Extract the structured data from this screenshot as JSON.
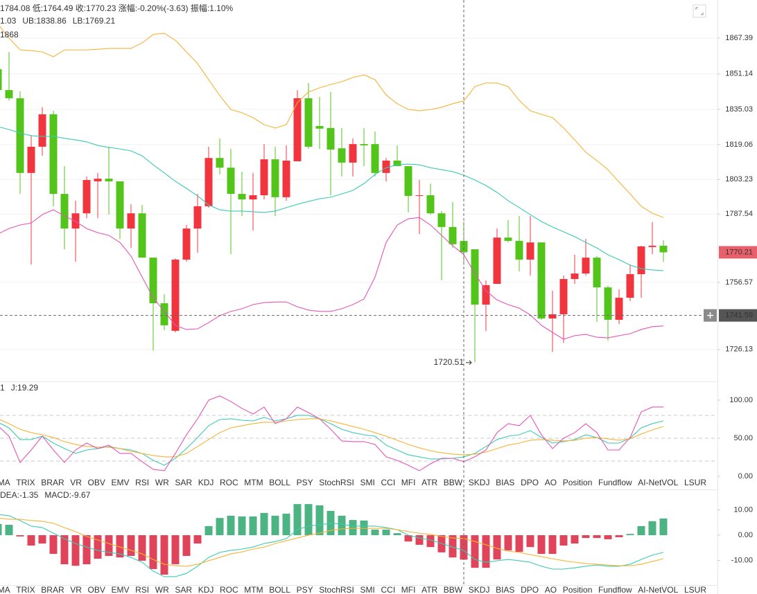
{
  "indicator_tabs": [
    "DMA",
    "TRIX",
    "BRAR",
    "VR",
    "OBV",
    "EMV",
    "RSI",
    "WR",
    "SAR",
    "KDJ",
    "ROC",
    "MTM",
    "BOLL",
    "PSY",
    "StochRSI",
    "SMI",
    "CCI",
    "MFI",
    "ATR",
    "BBW",
    "SKDJ",
    "BIAS",
    "DPO",
    "AO",
    "Position",
    "Fundflow",
    "AI-NetVOL",
    "LSUR"
  ],
  "tab_rows": [
    {
      "active": 9,
      "disabled": [
        26
      ]
    },
    {
      "disabled": [
        9,
        26
      ]
    }
  ],
  "chart_data": [
    {
      "type": "candlestick",
      "info": "1784.08 低:1764.49 收:1770.23 涨幅:-0.20%(-3.63) 振幅:1.10%",
      "info_color": "#e8434e",
      "corner_label": "1868",
      "legend": [
        {
          "label": "1.03",
          "color": "#2ab7a2"
        },
        {
          "label": "UB:1838.86",
          "color": "#f0a020"
        },
        {
          "label": "LB:1769.21",
          "color": "#e040b0"
        }
      ],
      "open": [
        1853.3,
        1843.8,
        1840.1,
        1806.2,
        1818.1,
        1832.8,
        1796.7,
        1781.0,
        1787.9,
        1802.4,
        1803.6,
        1802.4,
        1781.0,
        1787.9,
        1767.8,
        1747.1,
        1734.6,
        1766.9,
        1781.0,
        1791.1,
        1813.0,
        1808.6,
        1796.7,
        1794.2,
        1796.1,
        1812.4,
        1795.2,
        1811.5,
        1840.1,
        1827.5,
        1826.6,
        1817.4,
        1810.9,
        1819.3,
        1819.3,
        1806.2,
        1811.8,
        1809.3,
        1795.8,
        1796.1,
        1787.9,
        1781.7,
        1775.4,
        1771.6,
        1746.5,
        1755.9,
        1776.9,
        1775.4,
        1766.9,
        1774.7,
        1740.2,
        1742.1,
        1758.1,
        1760.6,
        1767.8,
        1754.3,
        1739.6,
        1749.6,
        1760.3,
        1772.6,
        1773.2
      ],
      "high": [
        1859.5,
        1861.1,
        1843.2,
        1823.4,
        1836.0,
        1834.4,
        1809.3,
        1793.6,
        1804.6,
        1806.2,
        1818.1,
        1802.4,
        1792.0,
        1791.7,
        1767.8,
        1751.2,
        1767.5,
        1782.6,
        1796.7,
        1818.1,
        1821.9,
        1817.1,
        1806.8,
        1806.2,
        1819.3,
        1818.1,
        1818.7,
        1843.8,
        1847.0,
        1840.7,
        1842.9,
        1826.6,
        1821.9,
        1826.6,
        1825.0,
        1813.0,
        1818.7,
        1809.3,
        1803.0,
        1801.4,
        1788.9,
        1793.0,
        1784.08,
        1771.6,
        1757.5,
        1781.0,
        1784.8,
        1786.7,
        1786.7,
        1774.7,
        1752.8,
        1759.7,
        1769.1,
        1776.3,
        1768.5,
        1755.0,
        1753.4,
        1764.7,
        1773.2,
        1783.9,
        1775.7
      ],
      "low": [
        1840.7,
        1839.1,
        1796.7,
        1764.7,
        1814.0,
        1791.1,
        1771.6,
        1765.9,
        1785.7,
        1785.7,
        1787.3,
        1776.3,
        1772.2,
        1767.8,
        1725.7,
        1734.9,
        1733.9,
        1765.9,
        1770.0,
        1790.4,
        1805.5,
        1769.4,
        1786.7,
        1780.1,
        1794.2,
        1786.7,
        1793.6,
        1811.5,
        1817.1,
        1817.1,
        1796.1,
        1804.6,
        1804.6,
        1809.3,
        1804.6,
        1802.4,
        1809.3,
        1788.3,
        1778.5,
        1787.3,
        1757.5,
        1772.2,
        1764.49,
        1720.51,
        1734.6,
        1755.9,
        1774.7,
        1761.6,
        1759.7,
        1739.6,
        1725.1,
        1729.2,
        1755.9,
        1759.7,
        1738.6,
        1730.2,
        1737.7,
        1748.1,
        1749.6,
        1769.4,
        1765.9
      ],
      "close": [
        1843.8,
        1840.1,
        1806.2,
        1818.1,
        1832.8,
        1796.7,
        1781.0,
        1787.9,
        1803.0,
        1803.6,
        1802.4,
        1781.0,
        1787.9,
        1767.8,
        1747.1,
        1737.1,
        1766.9,
        1781.0,
        1791.1,
        1813.0,
        1808.6,
        1796.7,
        1794.2,
        1796.1,
        1812.4,
        1795.2,
        1811.8,
        1840.1,
        1818.1,
        1826.3,
        1816.8,
        1810.9,
        1819.3,
        1818.7,
        1806.2,
        1811.8,
        1809.3,
        1795.8,
        1796.1,
        1787.9,
        1781.7,
        1773.86,
        1770.23,
        1746.5,
        1755.3,
        1776.9,
        1775.4,
        1766.9,
        1774.7,
        1740.2,
        1742.1,
        1758.1,
        1760.6,
        1767.8,
        1754.3,
        1739.6,
        1749.6,
        1760.3,
        1772.9,
        1773.2,
        1770.21
      ],
      "up_color": "#f0353f",
      "down_color": "#52c41a",
      "series": [
        {
          "color": "#f5b335",
          "values": [
            1873.7,
            1867.4,
            1862.0,
            1861.7,
            1861.1,
            1858.9,
            1862.0,
            1862.0,
            1862.0,
            1862.3,
            1862.7,
            1862.7,
            1862.7,
            1865.2,
            1869.0,
            1869.6,
            1866.4,
            1861.1,
            1855.8,
            1848.5,
            1841.3,
            1835.0,
            1833.5,
            1831.3,
            1828.1,
            1826.6,
            1828.1,
            1838.2,
            1842.9,
            1844.8,
            1846.3,
            1847.6,
            1849.5,
            1850.7,
            1848.5,
            1841.6,
            1837.6,
            1835.0,
            1834.4,
            1835.0,
            1836.0,
            1837.6,
            1838.86,
            1845.4,
            1847.0,
            1847.0,
            1845.4,
            1839.1,
            1834.4,
            1832.8,
            1831.3,
            1826.6,
            1821.2,
            1815.6,
            1811.8,
            1807.7,
            1802.1,
            1796.7,
            1791.1,
            1787.9,
            1786.0
          ]
        },
        {
          "color": "#3cc9b4",
          "values": [
            1827.2,
            1825.9,
            1824.3,
            1823.1,
            1822.8,
            1822.8,
            1821.9,
            1821.2,
            1820.3,
            1818.7,
            1817.8,
            1817.1,
            1816.2,
            1814.0,
            1809.9,
            1806.2,
            1802.4,
            1799.2,
            1795.8,
            1791.7,
            1789.5,
            1788.9,
            1788.9,
            1788.6,
            1788.3,
            1788.9,
            1790.5,
            1792.0,
            1793.3,
            1794.5,
            1795.2,
            1796.7,
            1798.3,
            1801.4,
            1805.5,
            1808.6,
            1809.9,
            1810.2,
            1809.9,
            1808.6,
            1807.7,
            1806.8,
            1805.2,
            1803.0,
            1800.5,
            1797.4,
            1793.6,
            1790.5,
            1787.3,
            1784.2,
            1781.7,
            1779.5,
            1777.3,
            1774.7,
            1772.2,
            1769.1,
            1766.9,
            1764.4,
            1762.8,
            1762.2,
            1761.9
          ]
        },
        {
          "color": "#e455b8",
          "values": [
            1778.5,
            1781.0,
            1782.6,
            1783.5,
            1787.3,
            1789.5,
            1786.7,
            1784.2,
            1781.0,
            1779.1,
            1777.9,
            1774.7,
            1768.5,
            1759.0,
            1749.6,
            1743.4,
            1737.1,
            1735.2,
            1735.5,
            1738.3,
            1741.5,
            1743.4,
            1744.6,
            1746.5,
            1747.4,
            1747.7,
            1747.7,
            1745.5,
            1744.0,
            1743.4,
            1743.4,
            1744.6,
            1746.5,
            1749.0,
            1759.0,
            1774.7,
            1782.6,
            1785.4,
            1786.0,
            1782.6,
            1777.9,
            1773.2,
            1769.21,
            1760.6,
            1752.8,
            1748.6,
            1746.5,
            1744.9,
            1741.8,
            1737.1,
            1733.9,
            1730.8,
            1732.4,
            1733.0,
            1731.7,
            1731.4,
            1732.4,
            1733.3,
            1735.2,
            1736.5,
            1736.8
          ]
        }
      ],
      "ylim": [
        1711.95,
        1884.65
      ],
      "yticks": [
        1867.39,
        1851.14,
        1835.03,
        1819.06,
        1803.23,
        1787.54,
        1756.57,
        1726.13
      ],
      "grid": true,
      "crosshair_index": 42,
      "crosshair_price": 1741.59,
      "low_marker_index": 43
    },
    {
      "type": "line",
      "legend": [
        {
          "label": "1",
          "color": "#f0a020"
        },
        {
          "label": "J:19.29",
          "color": "#e040b0"
        }
      ],
      "series": [
        {
          "color": "#3cc9b4",
          "values": [
            70.9,
            63.6,
            48.2,
            48.2,
            52.7,
            43.6,
            36.4,
            30.0,
            34.5,
            36.4,
            39.1,
            36.4,
            34.5,
            30.0,
            20.9,
            14.5,
            23.6,
            36.4,
            50.9,
            66.4,
            74.5,
            75.5,
            73.6,
            72.7,
            77.3,
            72.7,
            75.5,
            80.0,
            80.0,
            75.5,
            69.1,
            61.8,
            57.3,
            54.5,
            52.7,
            40.9,
            34.5,
            28.2,
            25.5,
            22.7,
            22.7,
            23.6,
            25.5,
            30.0,
            39.1,
            48.2,
            52.7,
            54.5,
            60.0,
            50.9,
            43.6,
            45.5,
            48.2,
            54.5,
            50.9,
            43.6,
            43.6,
            50.0,
            63.6,
            69.1,
            72.7
          ]
        },
        {
          "color": "#f5b335",
          "values": [
            75.5,
            69.1,
            61.8,
            57.3,
            54.5,
            50.9,
            45.5,
            41.8,
            39.1,
            38.2,
            38.2,
            36.4,
            32.7,
            30.0,
            27.3,
            25.5,
            25.5,
            30.0,
            39.1,
            48.2,
            57.3,
            63.6,
            66.4,
            69.1,
            70.9,
            70.9,
            72.7,
            74.5,
            75.5,
            75.5,
            72.7,
            69.1,
            65.5,
            61.8,
            57.3,
            52.7,
            47.3,
            41.8,
            37.3,
            33.6,
            30.9,
            29.1,
            28.2,
            29.1,
            31.8,
            36.4,
            40.9,
            43.6,
            47.3,
            48.2,
            47.3,
            46.4,
            47.3,
            50.0,
            50.9,
            49.1,
            47.3,
            49.1,
            55.5,
            60.9,
            65.5
          ]
        },
        {
          "color": "#e455b8",
          "values": [
            66.4,
            52.7,
            18.2,
            34.5,
            52.7,
            34.5,
            18.2,
            34.5,
            43.6,
            36.4,
            40.9,
            30.0,
            30.0,
            19.1,
            9.1,
            7.3,
            30.0,
            54.5,
            75.5,
            100.0,
            105.5,
            98.2,
            89.1,
            81.8,
            90.9,
            69.1,
            75.5,
            90.9,
            83.6,
            75.5,
            61.8,
            46.4,
            45.5,
            45.5,
            41.8,
            25.5,
            20.9,
            14.5,
            7.3,
            16.4,
            23.6,
            23.6,
            19.29,
            25.5,
            34.5,
            57.3,
            69.1,
            66.4,
            80.0,
            54.5,
            36.4,
            50.0,
            57.3,
            69.1,
            57.3,
            34.5,
            34.5,
            50.9,
            84.5,
            90.9,
            90.9
          ]
        }
      ],
      "ylim": [
        -15.5,
        123.6
      ],
      "yticks": [
        {
          "value": 100,
          "label": "100.00"
        },
        {
          "value": 50,
          "label": "50.00"
        },
        {
          "value": 0,
          "label": "0.00"
        }
      ],
      "reference_lines": [
        80,
        50,
        20
      ]
    },
    {
      "type": "bar",
      "legend": [
        {
          "label": "DEA:-1.35",
          "color": "#f0a020"
        },
        {
          "label": "MACD:-9.67",
          "color": "#e8434e"
        }
      ],
      "values": [
        4.4,
        4.1,
        -0.5,
        -4.1,
        -3.3,
        -7.4,
        -11.5,
        -12.1,
        -11.5,
        -9.3,
        -8.2,
        -8.8,
        -8.2,
        -10.1,
        -13.4,
        -15.6,
        -11.5,
        -8.2,
        -3.3,
        3.6,
        6.8,
        7.7,
        7.4,
        7.4,
        8.8,
        7.7,
        8.5,
        12.3,
        12.3,
        11.8,
        9.6,
        7.7,
        6.0,
        5.8,
        2.2,
        2.2,
        0.8,
        -2.5,
        -3.8,
        -4.7,
        -6.8,
        -8.8,
        -9.67,
        -12.9,
        -12.9,
        -9.6,
        -6.0,
        -6.6,
        -4.7,
        -7.4,
        -7.4,
        -4.1,
        -3.3,
        -1.1,
        -1.1,
        -1.6,
        -0.8,
        0.5,
        3.6,
        5.5,
        6.6
      ],
      "pos_color": "#4cb383",
      "neg_color": "#e0445a",
      "series": [
        {
          "color": "#3cc9b4",
          "values": [
            8.2,
            7.7,
            5.8,
            3.6,
            3.0,
            0.8,
            -1.4,
            -3.3,
            -4.7,
            -6.0,
            -6.8,
            -7.4,
            -8.8,
            -10.7,
            -14.2,
            -16.4,
            -16.4,
            -15.1,
            -12.3,
            -8.8,
            -6.8,
            -6.0,
            -5.5,
            -4.7,
            -3.3,
            -2.5,
            -1.4,
            2.2,
            3.6,
            4.1,
            4.7,
            4.4,
            3.6,
            3.6,
            3.6,
            3.0,
            2.2,
            0.0,
            -1.1,
            -1.9,
            -3.3,
            -4.7,
            -6.0,
            -9.6,
            -10.7,
            -10.1,
            -9.6,
            -10.1,
            -10.7,
            -12.3,
            -13.4,
            -13.4,
            -12.9,
            -12.3,
            -11.8,
            -12.3,
            -12.3,
            -11.5,
            -9.6,
            -7.9,
            -6.8
          ]
        },
        {
          "color": "#f5b335",
          "values": [
            6.8,
            6.3,
            6.3,
            5.8,
            5.5,
            4.7,
            3.0,
            1.4,
            -0.5,
            -1.9,
            -3.3,
            -4.7,
            -6.0,
            -7.4,
            -9.6,
            -11.5,
            -12.1,
            -12.3,
            -11.5,
            -10.1,
            -8.8,
            -7.4,
            -6.6,
            -5.5,
            -4.7,
            -3.3,
            -2.2,
            -1.1,
            0.0,
            0.8,
            1.9,
            2.5,
            2.7,
            2.7,
            2.7,
            2.7,
            2.2,
            1.4,
            0.8,
            0.3,
            -0.5,
            -1.1,
            -1.35,
            -2.5,
            -3.8,
            -5.2,
            -6.3,
            -6.8,
            -7.7,
            -8.5,
            -9.3,
            -10.1,
            -10.7,
            -11.2,
            -11.5,
            -11.8,
            -12.1,
            -12.1,
            -11.5,
            -10.4,
            -9.3
          ]
        }
      ],
      "ylim": [
        -19.7,
        17.26
      ],
      "yticks": [
        {
          "value": 10,
          "label": "10.00"
        },
        {
          "value": 0,
          "label": "0.00"
        },
        {
          "value": -10,
          "label": "-10.00"
        }
      ]
    }
  ]
}
